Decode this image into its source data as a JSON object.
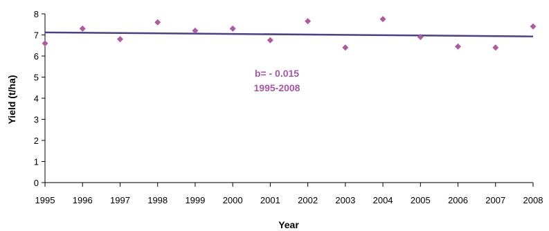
{
  "chart_data": {
    "type": "scatter",
    "x": [
      1995,
      1996,
      1997,
      1998,
      1999,
      2000,
      2001,
      2002,
      2003,
      2004,
      2005,
      2006,
      2007,
      2008
    ],
    "series": [
      {
        "values": [
          6.6,
          7.3,
          6.8,
          7.6,
          7.2,
          7.3,
          6.75,
          7.65,
          6.4,
          7.75,
          6.9,
          6.45,
          6.4,
          7.4
        ]
      }
    ],
    "trendline": {
      "start": [
        1995,
        7.12
      ],
      "end": [
        2008,
        6.93
      ]
    },
    "xlabel": "Year",
    "ylabel": "Yield (t/ha)",
    "xlim": [
      1995,
      2008
    ],
    "ylim": [
      0,
      8
    ],
    "yticks": [
      0,
      1,
      2,
      3,
      4,
      5,
      6,
      7,
      8
    ],
    "xticks": [
      1995,
      1996,
      1997,
      1998,
      1999,
      2000,
      2001,
      2002,
      2003,
      2004,
      2005,
      2006,
      2007,
      2008
    ],
    "grid": false,
    "annotation": {
      "line1": "b= - 0.015",
      "line2": "1995-2008"
    },
    "colors": {
      "points": "#b05aa0",
      "trendline": "#4b3f8c",
      "annotation": "#a855a8",
      "axis": "#000000"
    }
  }
}
